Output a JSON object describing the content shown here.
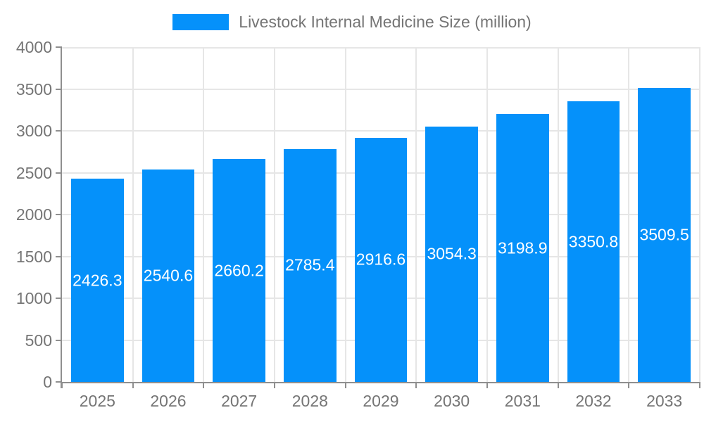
{
  "legend": {
    "items": [
      {
        "label": "Livestock Internal Medicine Size (million)",
        "color": "#0591FA"
      }
    ]
  },
  "chart_data": {
    "type": "bar",
    "title": "Livestock Internal Medicine Size (million)",
    "categories": [
      "2025",
      "2026",
      "2027",
      "2028",
      "2029",
      "2030",
      "2031",
      "2032",
      "2033"
    ],
    "series": [
      {
        "name": "Livestock Internal Medicine Size (million)",
        "color": "#0591FA",
        "values": [
          2426.3,
          2540.6,
          2660.2,
          2785.4,
          2916.6,
          3054.3,
          3198.9,
          3350.8,
          3509.5
        ]
      }
    ],
    "xlabel": "",
    "ylabel": "",
    "ylim": [
      0,
      4000
    ],
    "yticks": [
      0,
      500,
      1000,
      1500,
      2000,
      2500,
      3000,
      3500,
      4000
    ],
    "grid": true,
    "legend_position": "top-center",
    "value_labels_position": "inside-middle",
    "style": {
      "value_label_color": "#FFFFFF",
      "axis_text_color": "#757575",
      "grid_color": "#E6E6E6",
      "axis_line_color": "#8F8F8F",
      "background": "#FFFFFF"
    }
  }
}
